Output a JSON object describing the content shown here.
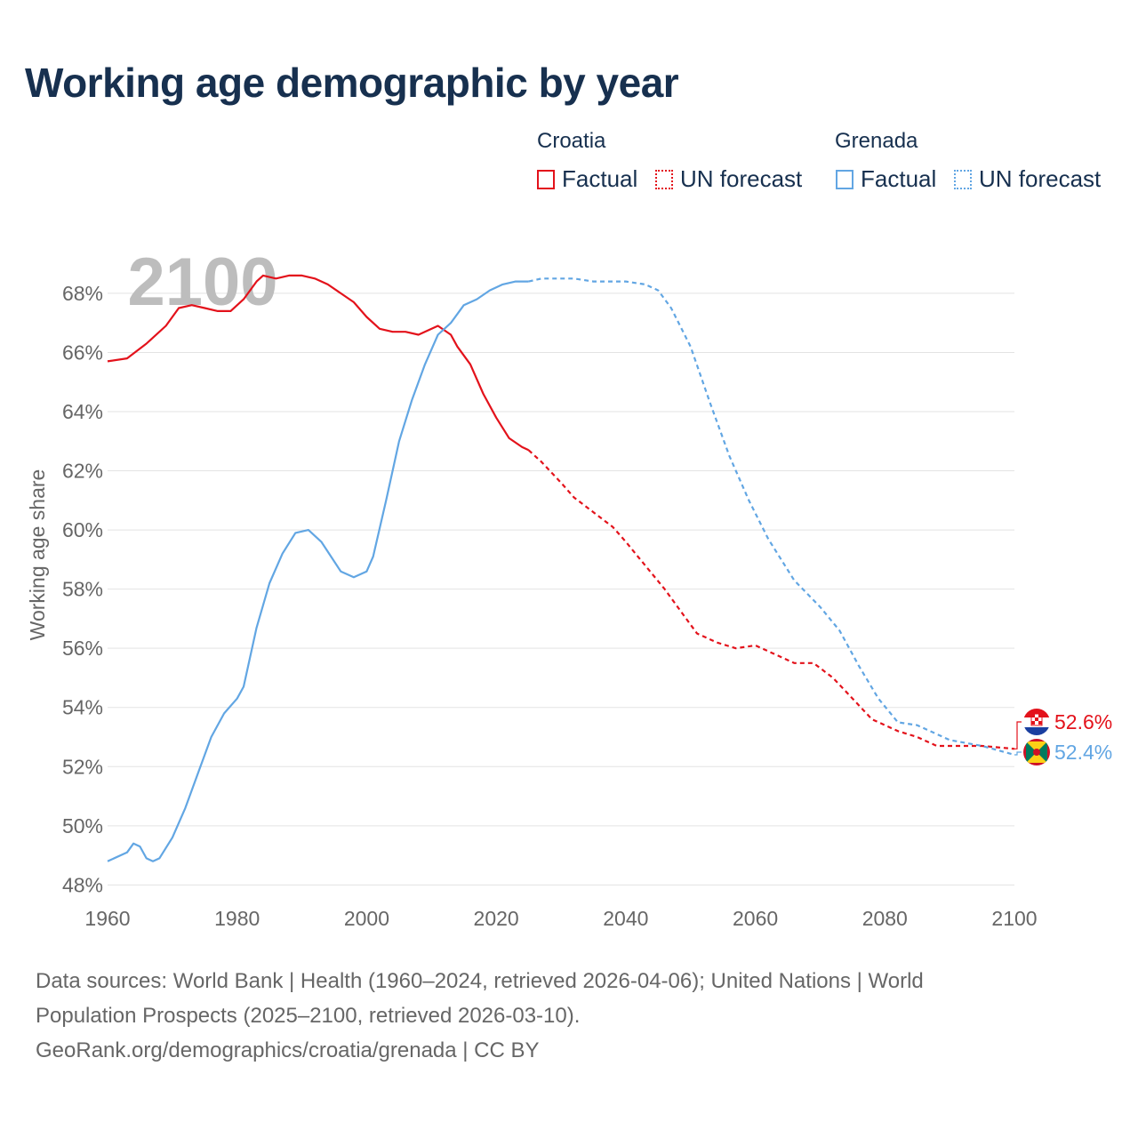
{
  "title": "Working age demographic by year",
  "legend": {
    "croatia": {
      "name": "Croatia",
      "factual": "Factual",
      "forecast": "UN forecast",
      "color": "#e3121b"
    },
    "grenada": {
      "name": "Grenada",
      "factual": "Factual",
      "forecast": "UN forecast",
      "color": "#62a6e3"
    }
  },
  "year_watermark": "2100",
  "end_labels": {
    "croatia": "52.6%",
    "grenada": "52.4%"
  },
  "sources": {
    "line1": "Data sources: World Bank | Health (1960–2024, retrieved 2026-04-06); United Nations | World",
    "line2": "Population Prospects (2025–2100, retrieved 2026-03-10).",
    "line3": "GeoRank.org/demographics/croatia/grenada | CC BY"
  },
  "chart_data": {
    "type": "line",
    "ylabel": "Working age share",
    "xlabel": "",
    "xlim": [
      1960,
      2100
    ],
    "ylim": [
      47.5,
      69.5
    ],
    "xticks": [
      1960,
      1980,
      2000,
      2020,
      2040,
      2060,
      2080,
      2100
    ],
    "yticks": [
      48,
      50,
      52,
      54,
      56,
      58,
      60,
      62,
      64,
      66,
      68
    ],
    "ytick_labels": [
      "48%",
      "50%",
      "52%",
      "54%",
      "56%",
      "58%",
      "60%",
      "62%",
      "64%",
      "66%",
      "68%"
    ],
    "forecast_start": 2025,
    "series": [
      {
        "name": "Croatia",
        "color": "#e3121b",
        "points": [
          [
            1960,
            65.7
          ],
          [
            1963,
            65.8
          ],
          [
            1966,
            66.3
          ],
          [
            1969,
            66.9
          ],
          [
            1971,
            67.5
          ],
          [
            1973,
            67.6
          ],
          [
            1975,
            67.5
          ],
          [
            1977,
            67.4
          ],
          [
            1979,
            67.4
          ],
          [
            1981,
            67.8
          ],
          [
            1983,
            68.4
          ],
          [
            1984,
            68.6
          ],
          [
            1986,
            68.5
          ],
          [
            1988,
            68.6
          ],
          [
            1990,
            68.6
          ],
          [
            1992,
            68.5
          ],
          [
            1994,
            68.3
          ],
          [
            1996,
            68.0
          ],
          [
            1998,
            67.7
          ],
          [
            2000,
            67.2
          ],
          [
            2002,
            66.8
          ],
          [
            2004,
            66.7
          ],
          [
            2006,
            66.7
          ],
          [
            2008,
            66.6
          ],
          [
            2011,
            66.9
          ],
          [
            2013,
            66.6
          ],
          [
            2014,
            66.2
          ],
          [
            2016,
            65.6
          ],
          [
            2018,
            64.6
          ],
          [
            2020,
            63.8
          ],
          [
            2022,
            63.1
          ],
          [
            2024,
            62.8
          ],
          [
            2025,
            62.7
          ],
          [
            2027,
            62.3
          ],
          [
            2030,
            61.6
          ],
          [
            2032,
            61.1
          ],
          [
            2035,
            60.6
          ],
          [
            2038,
            60.1
          ],
          [
            2040,
            59.6
          ],
          [
            2043,
            58.8
          ],
          [
            2046,
            58.0
          ],
          [
            2049,
            57.1
          ],
          [
            2051,
            56.5
          ],
          [
            2054,
            56.2
          ],
          [
            2057,
            56.0
          ],
          [
            2060,
            56.1
          ],
          [
            2063,
            55.8
          ],
          [
            2066,
            55.5
          ],
          [
            2069,
            55.5
          ],
          [
            2072,
            55.0
          ],
          [
            2075,
            54.3
          ],
          [
            2078,
            53.6
          ],
          [
            2082,
            53.2
          ],
          [
            2085,
            53.0
          ],
          [
            2088,
            52.7
          ],
          [
            2091,
            52.7
          ],
          [
            2095,
            52.7
          ],
          [
            2100,
            52.6
          ]
        ]
      },
      {
        "name": "Grenada",
        "color": "#62a6e3",
        "points": [
          [
            1960,
            48.8
          ],
          [
            1963,
            49.1
          ],
          [
            1964,
            49.4
          ],
          [
            1965,
            49.3
          ],
          [
            1966,
            48.9
          ],
          [
            1967,
            48.8
          ],
          [
            1968,
            48.9
          ],
          [
            1970,
            49.6
          ],
          [
            1972,
            50.6
          ],
          [
            1974,
            51.8
          ],
          [
            1976,
            53.0
          ],
          [
            1978,
            53.8
          ],
          [
            1980,
            54.3
          ],
          [
            1981,
            54.7
          ],
          [
            1983,
            56.7
          ],
          [
            1985,
            58.2
          ],
          [
            1987,
            59.2
          ],
          [
            1989,
            59.9
          ],
          [
            1991,
            60.0
          ],
          [
            1993,
            59.6
          ],
          [
            1996,
            58.6
          ],
          [
            1998,
            58.4
          ],
          [
            2000,
            58.6
          ],
          [
            2001,
            59.1
          ],
          [
            2003,
            61.0
          ],
          [
            2005,
            63.0
          ],
          [
            2007,
            64.4
          ],
          [
            2009,
            65.6
          ],
          [
            2011,
            66.6
          ],
          [
            2013,
            67.0
          ],
          [
            2015,
            67.6
          ],
          [
            2017,
            67.8
          ],
          [
            2019,
            68.1
          ],
          [
            2021,
            68.3
          ],
          [
            2023,
            68.4
          ],
          [
            2025,
            68.4
          ],
          [
            2027,
            68.5
          ],
          [
            2032,
            68.5
          ],
          [
            2035,
            68.4
          ],
          [
            2040,
            68.4
          ],
          [
            2043,
            68.3
          ],
          [
            2045,
            68.1
          ],
          [
            2047,
            67.5
          ],
          [
            2050,
            66.2
          ],
          [
            2053,
            64.3
          ],
          [
            2056,
            62.5
          ],
          [
            2059,
            61.0
          ],
          [
            2062,
            59.7
          ],
          [
            2066,
            58.3
          ],
          [
            2070,
            57.4
          ],
          [
            2073,
            56.6
          ],
          [
            2076,
            55.4
          ],
          [
            2079,
            54.3
          ],
          [
            2082,
            53.5
          ],
          [
            2085,
            53.4
          ],
          [
            2090,
            52.9
          ],
          [
            2095,
            52.7
          ],
          [
            2100,
            52.4
          ]
        ]
      }
    ]
  }
}
